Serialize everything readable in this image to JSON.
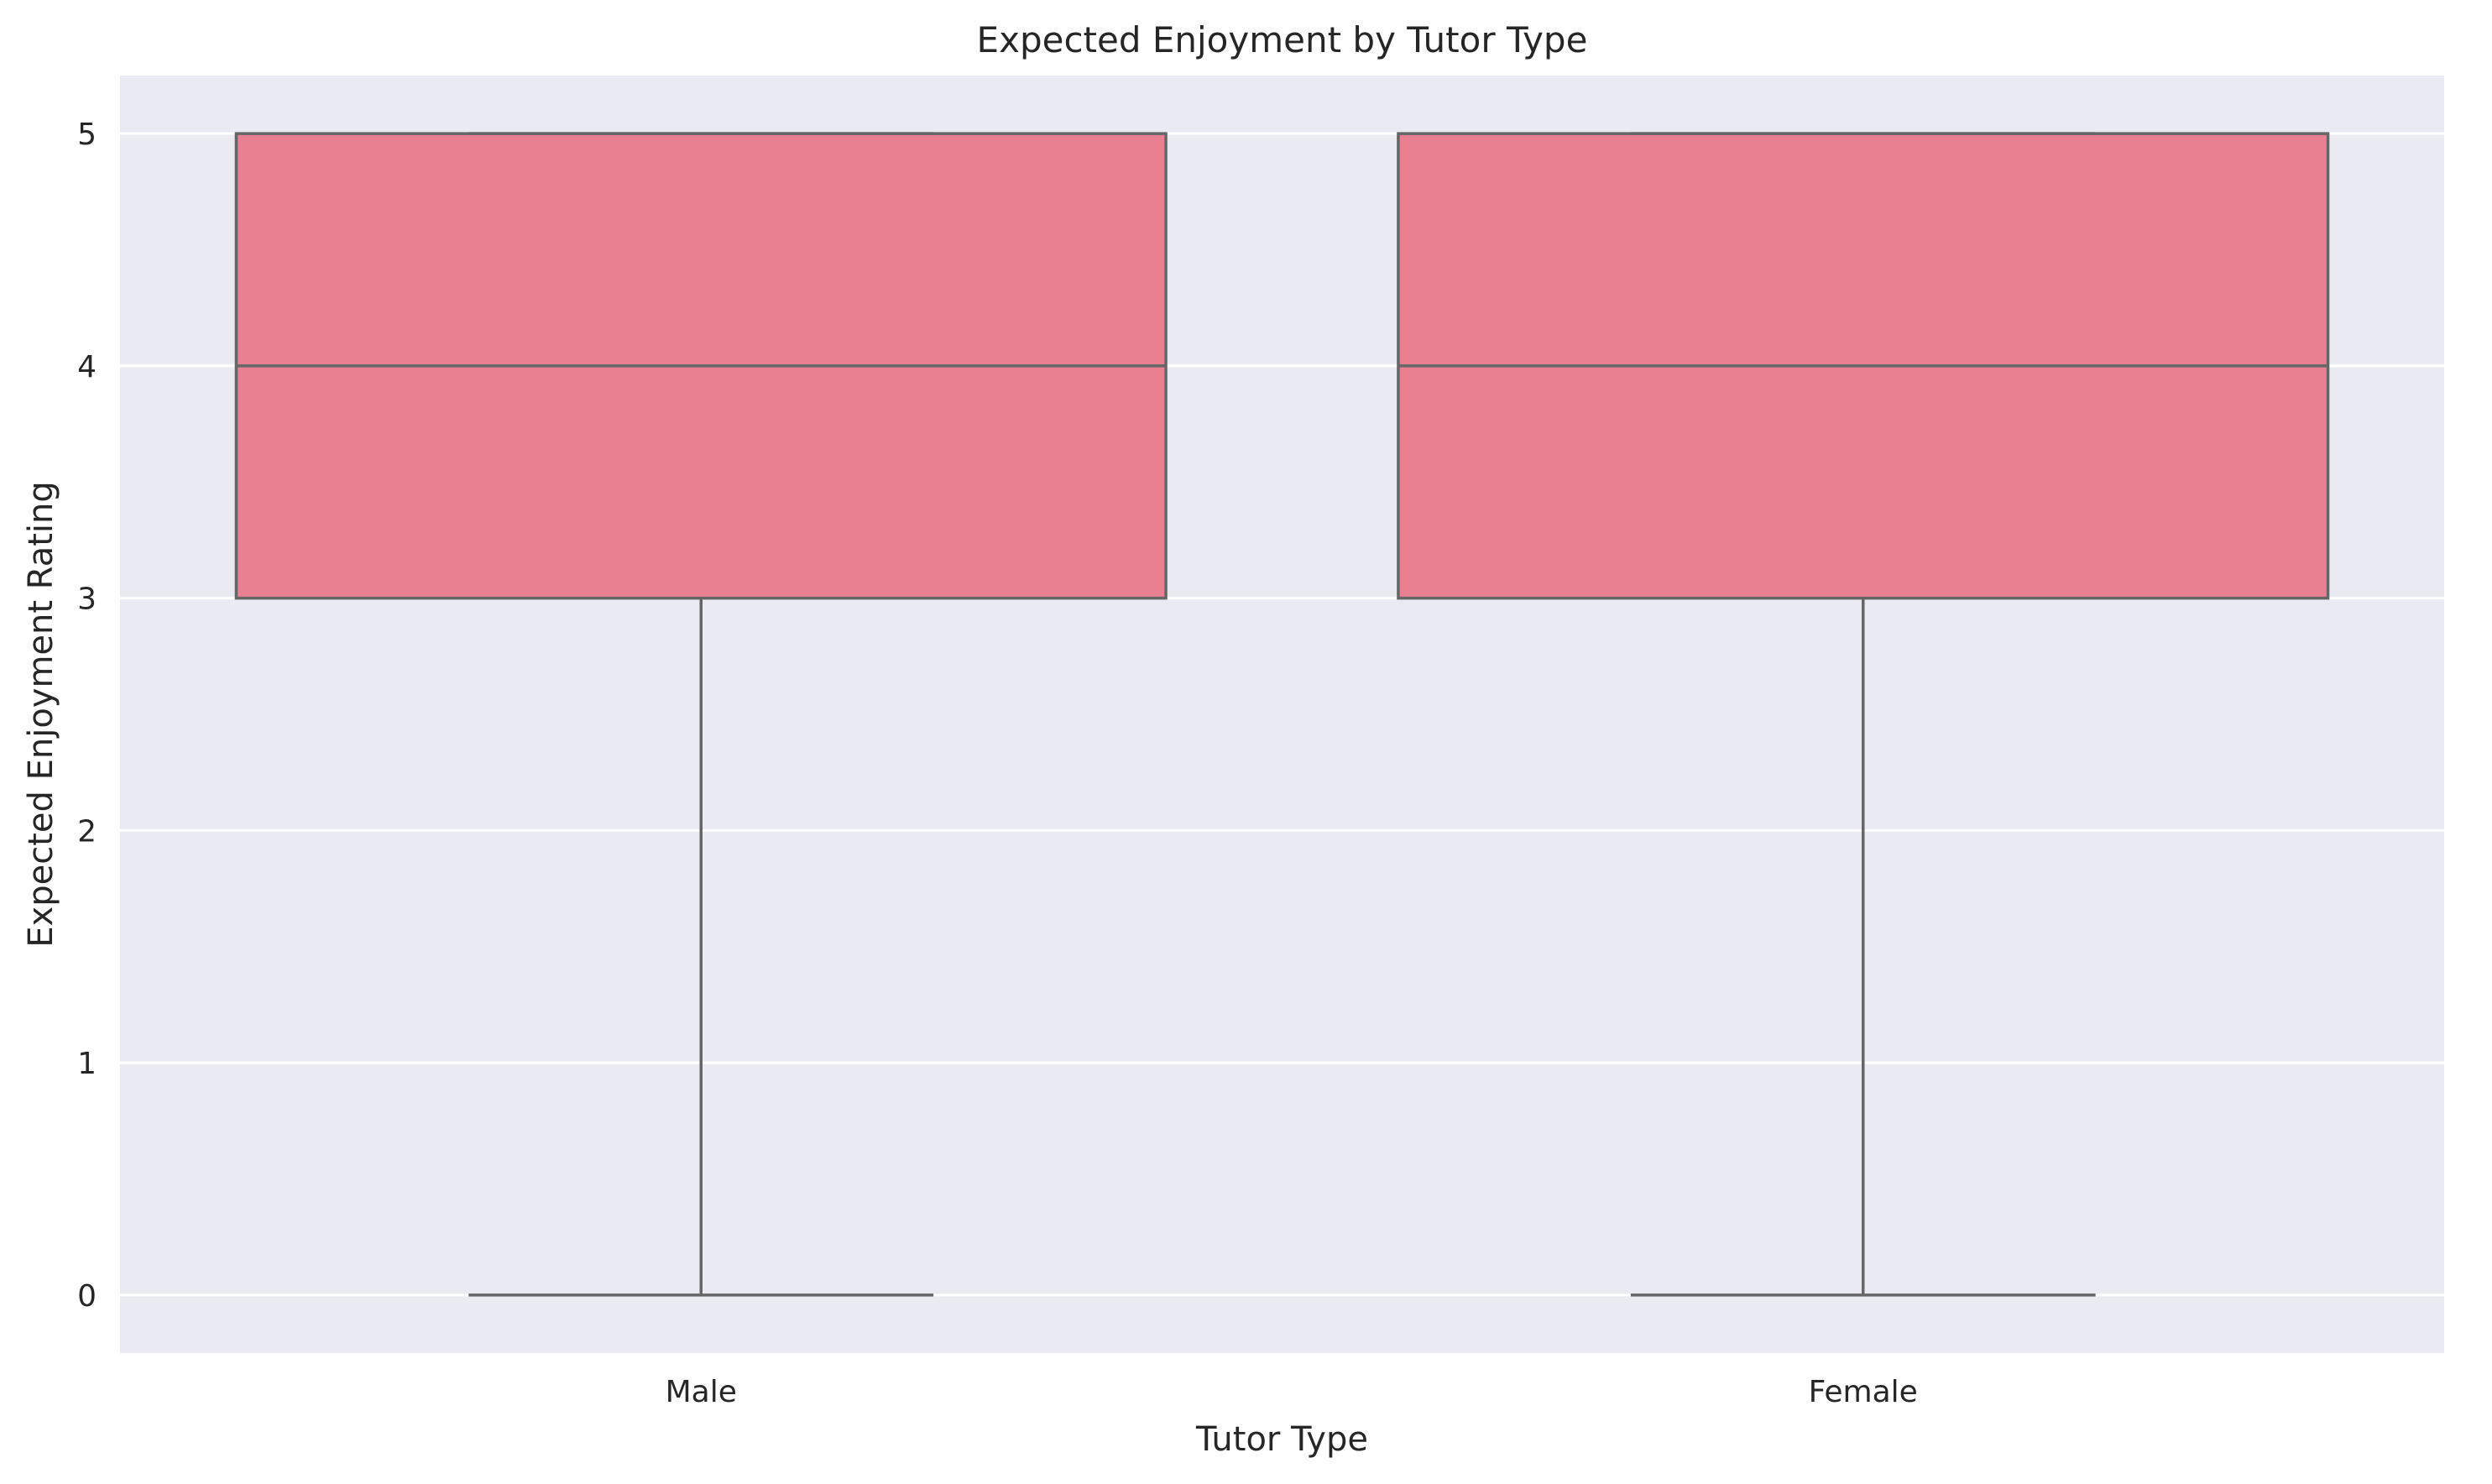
{
  "chart_data": {
    "type": "box",
    "title": "Expected Enjoyment by Tutor Type",
    "xlabel": "Tutor Type",
    "ylabel": "Expected Enjoyment Rating",
    "categories": [
      "Male",
      "Female"
    ],
    "boxes": [
      {
        "category": "Male",
        "min": 0,
        "q1": 3,
        "median": 4,
        "q3": 5,
        "max": 5
      },
      {
        "category": "Female",
        "min": 0,
        "q1": 3,
        "median": 4,
        "q3": 5,
        "max": 5
      }
    ],
    "yticks": [
      0,
      1,
      2,
      3,
      4,
      5
    ],
    "ylim": [
      -0.25,
      5.25
    ],
    "grid": true,
    "colors": {
      "background": "#eaeaf2",
      "box_fill": "#e88091",
      "line": "#666666",
      "grid": "#ffffff"
    }
  }
}
